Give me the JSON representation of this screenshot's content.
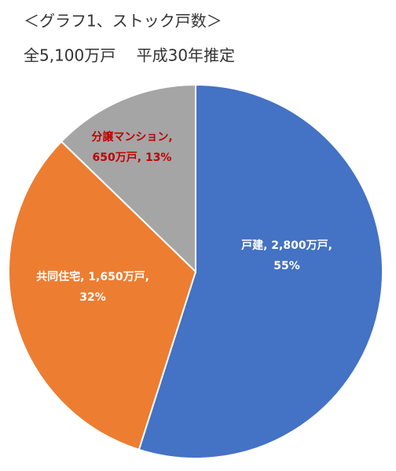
{
  "chart_data": {
    "type": "pie",
    "title": "＜グラフ1、ストック戸数＞",
    "subtitle": "全5,100万戸　 平成30年推定",
    "values": [
      2800,
      1650,
      650
    ],
    "value_labels": [
      [
        "戸建, 2,800万戸,",
        "55%"
      ],
      [
        "共同住宅, 1,650万戸,",
        "32%"
      ],
      [
        "分譲マンション,",
        "650万戸, 13%"
      ]
    ],
    "colors": [
      "#4472c4",
      "#ed7d31",
      "#a5a5a5"
    ],
    "label_colors": [
      "#ffffff",
      "#ffffff",
      "#c00000"
    ]
  }
}
